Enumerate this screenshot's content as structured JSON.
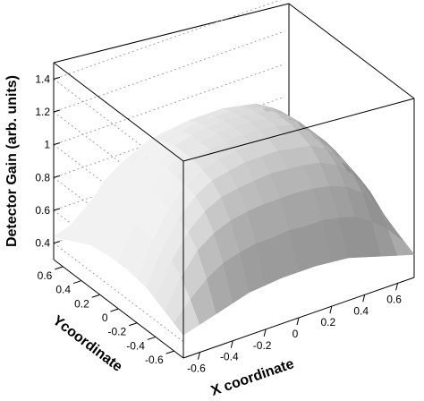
{
  "chart_data": {
    "type": "surface3d",
    "title": "",
    "xlabel": "X coordinate",
    "ylabel": "Ycoordinate",
    "zlabel": "Detector Gain (arb. units)",
    "x_ticks": [
      "-0.6",
      "-0.4",
      "-0.2",
      "0",
      "0.2",
      "0.4",
      "0.6"
    ],
    "y_ticks": [
      "-0.6",
      "-0.4",
      "-0.2",
      "0",
      "0.2",
      "0.4",
      "0.6"
    ],
    "z_ticks": [
      "0.4",
      "0.6",
      "0.8",
      "1",
      "1.2",
      "1.4"
    ],
    "xlim": [
      -0.7,
      0.7
    ],
    "ylim": [
      -0.7,
      0.7
    ],
    "zlim": [
      0.3,
      1.5
    ],
    "grid": true,
    "surface": {
      "x": [
        -0.7,
        -0.6,
        -0.5,
        -0.4,
        -0.3,
        -0.2,
        -0.1,
        0,
        0.1,
        0.2,
        0.3,
        0.4,
        0.5,
        0.6,
        0.7
      ],
      "y": [
        -0.7,
        -0.6,
        -0.5,
        -0.4,
        -0.3,
        -0.2,
        -0.1,
        0,
        0.1,
        0.2,
        0.3,
        0.4,
        0.5,
        0.6,
        0.7
      ],
      "z": [
        [
          0.44,
          0.47,
          0.5,
          0.53,
          0.56,
          0.57,
          0.58,
          0.58,
          0.58,
          0.57,
          0.56,
          0.53,
          0.5,
          0.47,
          0.44
        ],
        [
          0.47,
          0.58,
          0.67,
          0.73,
          0.76,
          0.78,
          0.78,
          0.79,
          0.78,
          0.78,
          0.76,
          0.73,
          0.67,
          0.58,
          0.47
        ],
        [
          0.5,
          0.67,
          0.8,
          0.87,
          0.91,
          0.93,
          0.94,
          0.94,
          0.94,
          0.93,
          0.91,
          0.87,
          0.8,
          0.67,
          0.5
        ],
        [
          0.53,
          0.73,
          0.87,
          0.96,
          1.01,
          1.03,
          1.04,
          1.05,
          1.04,
          1.03,
          1.01,
          0.96,
          0.87,
          0.73,
          0.53
        ],
        [
          0.56,
          0.76,
          0.91,
          1.01,
          1.07,
          1.09,
          1.11,
          1.11,
          1.11,
          1.09,
          1.07,
          1.01,
          0.91,
          0.76,
          0.56
        ],
        [
          0.57,
          0.78,
          0.93,
          1.03,
          1.09,
          1.12,
          1.14,
          1.14,
          1.14,
          1.12,
          1.09,
          1.03,
          0.93,
          0.78,
          0.57
        ],
        [
          0.58,
          0.78,
          0.94,
          1.04,
          1.11,
          1.14,
          1.15,
          1.16,
          1.15,
          1.14,
          1.11,
          1.04,
          0.94,
          0.78,
          0.58
        ],
        [
          0.58,
          0.79,
          0.94,
          1.05,
          1.11,
          1.14,
          1.16,
          1.16,
          1.16,
          1.14,
          1.11,
          1.05,
          0.94,
          0.79,
          0.58
        ],
        [
          0.58,
          0.78,
          0.94,
          1.04,
          1.11,
          1.14,
          1.15,
          1.16,
          1.15,
          1.14,
          1.11,
          1.04,
          0.94,
          0.78,
          0.58
        ],
        [
          0.57,
          0.78,
          0.93,
          1.03,
          1.09,
          1.12,
          1.14,
          1.14,
          1.14,
          1.12,
          1.09,
          1.03,
          0.93,
          0.78,
          0.57
        ],
        [
          0.56,
          0.76,
          0.91,
          1.01,
          1.07,
          1.09,
          1.11,
          1.11,
          1.11,
          1.09,
          1.07,
          1.01,
          0.91,
          0.76,
          0.56
        ],
        [
          0.53,
          0.73,
          0.87,
          0.96,
          1.01,
          1.03,
          1.04,
          1.05,
          1.04,
          1.03,
          1.01,
          0.96,
          0.87,
          0.73,
          0.53
        ],
        [
          0.5,
          0.67,
          0.8,
          0.87,
          0.91,
          0.93,
          0.94,
          0.94,
          0.94,
          0.93,
          0.91,
          0.87,
          0.8,
          0.67,
          0.5
        ],
        [
          0.47,
          0.58,
          0.67,
          0.73,
          0.76,
          0.78,
          0.78,
          0.79,
          0.78,
          0.78,
          0.76,
          0.73,
          0.67,
          0.58,
          0.47
        ],
        [
          0.44,
          0.47,
          0.5,
          0.53,
          0.56,
          0.57,
          0.58,
          0.58,
          0.58,
          0.57,
          0.56,
          0.53,
          0.5,
          0.47,
          0.44
        ]
      ]
    },
    "colors": {
      "surface_light": "#f2f2f2",
      "surface_dark": "#6e6e6e",
      "frame": "#000000",
      "grid": "#a0a0a0"
    }
  }
}
